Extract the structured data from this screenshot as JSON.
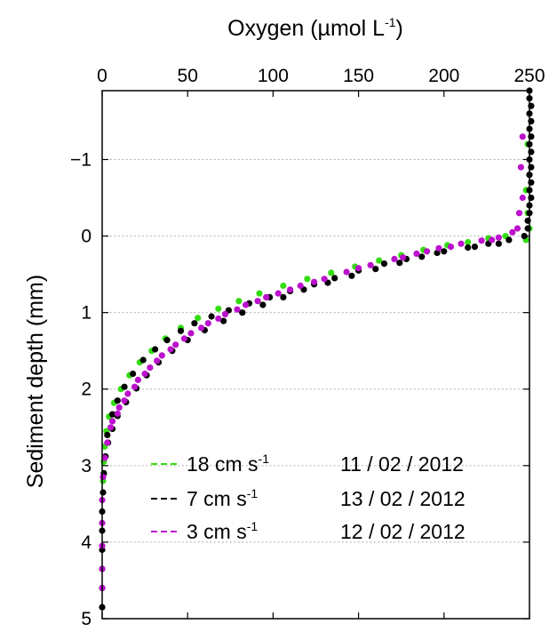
{
  "chart_data": {
    "type": "scatter",
    "xlabel": {
      "base": "Oxygen (µmol L",
      "sup": "-1",
      "tail": ")"
    },
    "ylabel": "Sediment depth (mm)",
    "xlim": [
      0,
      250
    ],
    "ylim": [
      -1.9,
      5
    ],
    "y_reversed": true,
    "x_axis_position": "top",
    "xticks": [
      0,
      50,
      100,
      150,
      200,
      250
    ],
    "xtick_labels": [
      "0",
      "50",
      "100",
      "150",
      "200",
      "250"
    ],
    "yticks": [
      -1,
      0,
      1,
      2,
      3,
      4,
      5
    ],
    "ytick_labels": [
      "−1",
      "0",
      "1",
      "2",
      "3",
      "4",
      "5"
    ],
    "grid": "dotted-horizontal",
    "legend_position": "lower-center",
    "series": [
      {
        "color": "#33dd11",
        "legend": {
          "speed": "18 cm s",
          "sup": "-1",
          "date": "11 / 02 / 2012"
        },
        "points": [
          [
            249,
            -1.2
          ],
          [
            248,
            -0.6
          ],
          [
            249,
            -0.3
          ],
          [
            250,
            -0.1
          ],
          [
            248,
            0.05
          ],
          [
            236,
            0.0
          ],
          [
            226,
            0.03
          ],
          [
            214,
            0.08
          ],
          [
            202,
            0.12
          ],
          [
            188,
            0.18
          ],
          [
            175,
            0.25
          ],
          [
            162,
            0.32
          ],
          [
            148,
            0.4
          ],
          [
            134,
            0.48
          ],
          [
            120,
            0.56
          ],
          [
            106,
            0.65
          ],
          [
            92,
            0.75
          ],
          [
            80,
            0.85
          ],
          [
            68,
            0.95
          ],
          [
            56,
            1.07
          ],
          [
            46,
            1.2
          ],
          [
            37,
            1.34
          ],
          [
            29,
            1.5
          ],
          [
            22,
            1.65
          ],
          [
            16,
            1.82
          ],
          [
            11,
            2.0
          ],
          [
            7,
            2.18
          ],
          [
            4,
            2.36
          ],
          [
            2.5,
            2.55
          ],
          [
            1.5,
            2.75
          ],
          [
            1,
            2.95
          ],
          [
            0.5,
            3.2
          ]
        ]
      },
      {
        "color": "#000000",
        "legend": {
          "speed": "7 cm s",
          "sup": "-1",
          "date": "13 / 02 / 2012"
        },
        "points": [
          [
            250,
            -1.9
          ],
          [
            250,
            -1.8
          ],
          [
            251,
            -1.7
          ],
          [
            250,
            -1.6
          ],
          [
            251,
            -1.5
          ],
          [
            250,
            -1.4
          ],
          [
            251,
            -1.3
          ],
          [
            250,
            -1.2
          ],
          [
            251,
            -1.1
          ],
          [
            250,
            -1.0
          ],
          [
            251,
            -0.9
          ],
          [
            250,
            -0.8
          ],
          [
            251,
            -0.7
          ],
          [
            250,
            -0.6
          ],
          [
            251,
            -0.5
          ],
          [
            250,
            -0.4
          ],
          [
            250,
            -0.3
          ],
          [
            249,
            -0.2
          ],
          [
            249,
            -0.1
          ],
          [
            247,
            0.0
          ],
          [
            238,
            0.05
          ],
          [
            226,
            0.1
          ],
          [
            214,
            0.15
          ],
          [
            200,
            0.2
          ],
          [
            187,
            0.27
          ],
          [
            174,
            0.35
          ],
          [
            160,
            0.43
          ],
          [
            146,
            0.52
          ],
          [
            132,
            0.61
          ],
          [
            118,
            0.7
          ],
          [
            106,
            0.8
          ],
          [
            94,
            0.9
          ],
          [
            82,
            1.0
          ],
          [
            71,
            1.11
          ],
          [
            60,
            1.23
          ],
          [
            50,
            1.36
          ],
          [
            41,
            1.5
          ],
          [
            33,
            1.65
          ],
          [
            26,
            1.82
          ],
          [
            20,
            1.99
          ],
          [
            14,
            2.17
          ],
          [
            9,
            2.35
          ],
          [
            6,
            2.52
          ],
          [
            3.5,
            2.7
          ],
          [
            2,
            2.88
          ],
          [
            1,
            3.1
          ],
          [
            0.5,
            3.35
          ],
          [
            0,
            3.6
          ],
          [
            0,
            3.85
          ],
          [
            0,
            4.1
          ],
          [
            0,
            4.35
          ],
          [
            0,
            4.6
          ],
          [
            0,
            4.85
          ],
          [
            232,
            0.1
          ],
          [
            218,
            0.14
          ],
          [
            196,
            0.22
          ],
          [
            178,
            0.3
          ],
          [
            165,
            0.36
          ],
          [
            150,
            0.45
          ],
          [
            136,
            0.55
          ],
          [
            124,
            0.63
          ],
          [
            110,
            0.72
          ],
          [
            98,
            0.8
          ],
          [
            86,
            0.88
          ],
          [
            74,
            0.97
          ],
          [
            64,
            1.05
          ],
          [
            54,
            1.14
          ],
          [
            46,
            1.24
          ],
          [
            38,
            1.36
          ],
          [
            31,
            1.48
          ],
          [
            24,
            1.62
          ],
          [
            18,
            1.8
          ],
          [
            13,
            1.97
          ],
          [
            9,
            2.15
          ],
          [
            6,
            2.33
          ],
          [
            3,
            2.6
          ]
        ]
      },
      {
        "color": "#bb11cc",
        "legend": {
          "speed": "3 cm s",
          "sup": "-1",
          "date": "12 / 02 / 2012"
        },
        "points": [
          [
            246,
            -1.3
          ],
          [
            245,
            -0.9
          ],
          [
            246,
            -0.5
          ],
          [
            244,
            -0.3
          ],
          [
            243,
            -0.1
          ],
          [
            240,
            -0.05
          ],
          [
            232,
            0.02
          ],
          [
            222,
            0.06
          ],
          [
            210,
            0.1
          ],
          [
            197,
            0.16
          ],
          [
            184,
            0.23
          ],
          [
            171,
            0.3
          ],
          [
            157,
            0.38
          ],
          [
            143,
            0.47
          ],
          [
            130,
            0.56
          ],
          [
            116,
            0.65
          ],
          [
            103,
            0.75
          ],
          [
            91,
            0.85
          ],
          [
            79,
            0.96
          ],
          [
            68,
            1.08
          ],
          [
            58,
            1.2
          ],
          [
            48,
            1.34
          ],
          [
            40,
            1.48
          ],
          [
            32,
            1.63
          ],
          [
            25,
            1.8
          ],
          [
            19,
            1.97
          ],
          [
            13,
            2.15
          ],
          [
            9,
            2.32
          ],
          [
            5,
            2.5
          ],
          [
            3,
            2.7
          ],
          [
            1.5,
            2.9
          ],
          [
            0.5,
            3.15
          ],
          [
            0,
            3.45
          ],
          [
            0,
            3.75
          ],
          [
            0,
            4.05
          ],
          [
            0,
            4.35
          ],
          [
            0,
            4.6
          ],
          [
            228,
            0.05
          ],
          [
            204,
            0.14
          ],
          [
            190,
            0.2
          ],
          [
            176,
            0.28
          ],
          [
            150,
            0.42
          ],
          [
            124,
            0.6
          ],
          [
            110,
            0.7
          ],
          [
            96,
            0.8
          ],
          [
            84,
            0.9
          ],
          [
            72,
            1.02
          ],
          [
            62,
            1.14
          ],
          [
            52,
            1.27
          ],
          [
            43,
            1.42
          ],
          [
            35,
            1.56
          ],
          [
            28,
            1.72
          ],
          [
            21,
            1.88
          ],
          [
            15,
            2.06
          ],
          [
            10,
            2.24
          ],
          [
            6,
            2.42
          ]
        ]
      }
    ]
  }
}
